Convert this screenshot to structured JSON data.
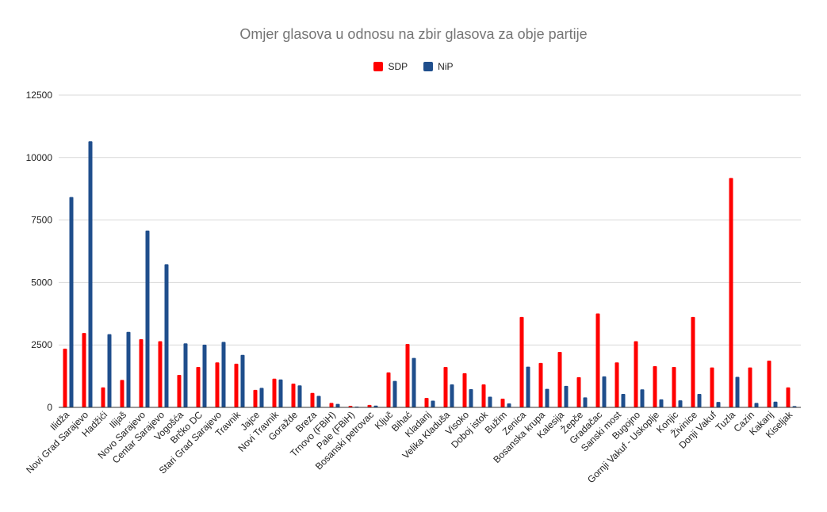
{
  "chart_data": {
    "type": "bar",
    "title": "Omjer glasova u odnosu na zbir glasova za obje partije",
    "xlabel": "",
    "ylabel": "",
    "ylim": [
      0,
      12500
    ],
    "yticks": [
      "0",
      "2500",
      "5000",
      "7500",
      "10000",
      "12500"
    ],
    "grid": true,
    "legend_position": "top-center",
    "categories": [
      "Ilidža",
      "Novi Grad Sarajevo",
      "Hadžići",
      "Ilijaš",
      "Novo Sarajevo",
      "Centar Sarajevo",
      "Vogošća",
      "Brčko DC",
      "Stari Grad Sarajevo",
      "Travnik",
      "Jajce",
      "Novi Travnik",
      "Goražde",
      "Breza",
      "Trnovo (FBiH)",
      "Pale (FBiH)",
      "Bosanski petrovac",
      "Ključ",
      "Bihać",
      "Kladanj",
      "Velika Kladuša",
      "Visoko",
      "Doboj istok",
      "Bužim",
      "Zenica",
      "Bosanska krupa",
      "Kalesija",
      "Žepče",
      "Gradačac",
      "Sanski most",
      "Bugojno",
      "Gornji Vakuf - Uskoplje",
      "Konjic",
      "Živinice",
      "Donji Vakuf",
      "Tuzla",
      "Cazin",
      "Kakanj",
      "Kiseljak"
    ],
    "series": [
      {
        "name": "SDP",
        "color": "#ff0000",
        "values": [
          2350,
          2980,
          800,
          1100,
          2730,
          2650,
          1300,
          1620,
          1800,
          1750,
          700,
          1150,
          950,
          580,
          180,
          60,
          100,
          1400,
          2540,
          380,
          1620,
          1370,
          920,
          350,
          3620,
          1780,
          2220,
          1210,
          3760,
          1800,
          2650,
          1650,
          1620,
          3620,
          1600,
          9180,
          1600,
          1870,
          800
        ]
      },
      {
        "name": "NiP",
        "color": "#1f4e8c",
        "values": [
          8420,
          10650,
          2930,
          3020,
          7080,
          5730,
          2560,
          2510,
          2620,
          2100,
          780,
          1120,
          880,
          460,
          140,
          30,
          70,
          1060,
          1980,
          270,
          920,
          730,
          430,
          160,
          1630,
          740,
          860,
          400,
          1240,
          540,
          720,
          320,
          280,
          540,
          220,
          1220,
          180,
          230,
          50
        ]
      }
    ]
  },
  "colors": {
    "grid": "#d9d9d9",
    "axis": "#333333",
    "tick_text": "#222222",
    "title": "#757575"
  }
}
